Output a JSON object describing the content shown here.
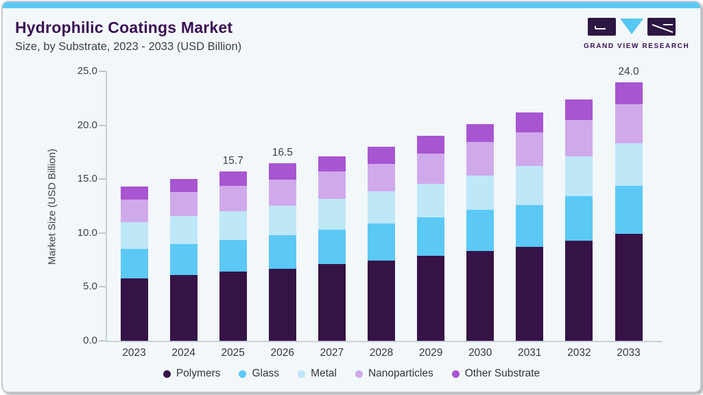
{
  "header": {
    "title": "Hydrophilic Coatings Market",
    "subtitle": "Size, by Substrate, 2023 - 2033 (USD Billion)"
  },
  "logo": {
    "text": "GRAND VIEW RESEARCH"
  },
  "colors": {
    "accent_bar": "#5BC8F2",
    "title_purple": "#3A1154",
    "body_text": "#3C4043",
    "card_bg": "#F2F7FA",
    "axis_line": "#C6D0D8",
    "logo_dark": "#2D1644",
    "logo_blue": "#56C7F3"
  },
  "chart_data": {
    "type": "bar",
    "stacked": true,
    "title": "Hydrophilic Coatings Market Size, by Substrate, 2023 - 2033 (USD Billion)",
    "xlabel": "",
    "ylabel": "Market Size (USD Billion)",
    "ylim": [
      0,
      25
    ],
    "grid": false,
    "legend_position": "bottom",
    "y_tick_values": [
      0,
      5,
      10,
      15,
      20,
      25
    ],
    "y_tick_labels": [
      "0.0",
      "5.0",
      "10.0",
      "15.0",
      "20.0",
      "25.0"
    ],
    "categories": [
      "2023",
      "2024",
      "2025",
      "2026",
      "2027",
      "2028",
      "2029",
      "2030",
      "2031",
      "2032",
      "2033"
    ],
    "series": [
      {
        "name": "Polymers",
        "color": "#351347",
        "values": [
          5.8,
          6.1,
          6.4,
          6.7,
          7.1,
          7.45,
          7.9,
          8.35,
          8.7,
          9.3,
          9.9
        ]
      },
      {
        "name": "Glass",
        "color": "#5BC8F5",
        "values": [
          2.7,
          2.9,
          2.95,
          3.1,
          3.2,
          3.4,
          3.55,
          3.8,
          3.9,
          4.1,
          4.5
        ]
      },
      {
        "name": "Metal",
        "color": "#BEE7F8",
        "values": [
          2.5,
          2.6,
          2.7,
          2.75,
          2.9,
          3.05,
          3.1,
          3.2,
          3.65,
          3.7,
          3.95
        ]
      },
      {
        "name": "Nanoparticles",
        "color": "#D0A9EB",
        "values": [
          2.1,
          2.2,
          2.35,
          2.4,
          2.5,
          2.5,
          2.85,
          3.1,
          3.1,
          3.4,
          3.6
        ]
      },
      {
        "name": "Other Substrate",
        "color": "#A855D1",
        "values": [
          1.2,
          1.2,
          1.3,
          1.55,
          1.4,
          1.6,
          1.6,
          1.65,
          1.85,
          1.9,
          2.05
        ]
      }
    ],
    "totals": [
      14.3,
      15.0,
      15.7,
      16.5,
      17.1,
      18.0,
      19.0,
      20.1,
      21.2,
      22.4,
      24.0
    ],
    "bar_labels": [
      "",
      "",
      "15.7",
      "16.5",
      "",
      "",
      "",
      "",
      "",
      "",
      "24.0"
    ]
  }
}
